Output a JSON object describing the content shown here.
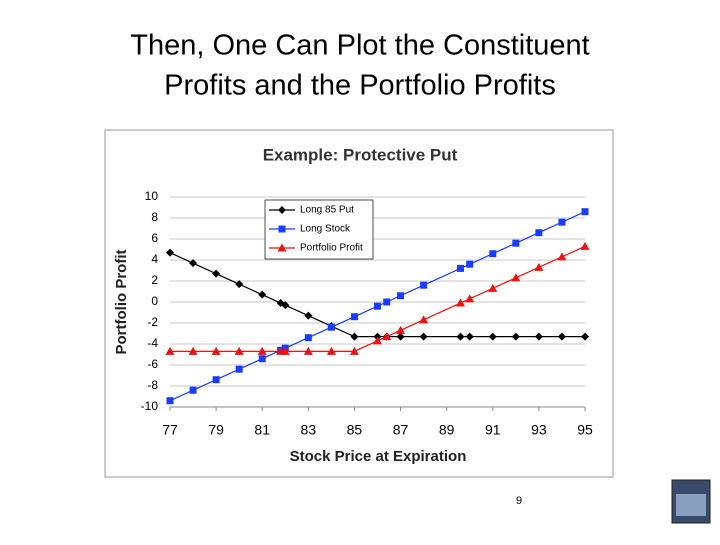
{
  "slide": {
    "title": [
      "Then, One Can Plot the Constituent",
      "Profits and the Portfolio Profits"
    ],
    "page_number": "9"
  },
  "chart_data": {
    "type": "line",
    "title": "Example: Protective Put",
    "x_label": "Stock Price at Expiration",
    "y_label": "Portfolio Profit",
    "x": [
      77,
      78,
      79,
      80,
      81,
      81.8,
      82,
      83,
      84,
      85,
      86,
      86.4,
      87,
      88,
      89.6,
      90,
      91,
      92,
      93,
      94,
      95
    ],
    "series": [
      {
        "name": "Long 85 Put",
        "color": "#000000",
        "marker": "diamond",
        "values": [
          4.7,
          3.7,
          2.7,
          1.7,
          0.7,
          -0.1,
          -0.3,
          -1.3,
          -2.3,
          -3.3,
          -3.3,
          -3.3,
          -3.3,
          -3.3,
          -3.3,
          -3.3,
          -3.3,
          -3.3,
          -3.3,
          -3.3,
          -3.3
        ]
      },
      {
        "name": "Long Stock",
        "color": "#1a3cff",
        "marker": "square",
        "values": [
          -9.4,
          -8.4,
          -7.4,
          -6.4,
          -5.4,
          -4.6,
          -4.4,
          -3.4,
          -2.4,
          -1.4,
          -0.4,
          0,
          0.6,
          1.6,
          3.2,
          3.6,
          4.6,
          5.6,
          6.6,
          7.6,
          8.6
        ]
      },
      {
        "name": "Portfolio Profit",
        "color": "#ee1111",
        "marker": "triangle",
        "values": [
          -4.7,
          -4.7,
          -4.7,
          -4.7,
          -4.7,
          -4.7,
          -4.7,
          -4.7,
          -4.7,
          -4.7,
          -3.7,
          -3.3,
          -2.7,
          -1.7,
          -0.1,
          0.3,
          1.3,
          2.3,
          3.3,
          4.3,
          5.3
        ]
      }
    ],
    "xlim": [
      77,
      95
    ],
    "xticks": [
      77,
      79,
      81,
      83,
      85,
      87,
      89,
      91,
      93,
      95
    ],
    "ylim": [
      -10,
      10
    ],
    "yticks": [
      -10,
      -8,
      -6,
      -4,
      -2,
      0,
      2,
      4,
      6,
      8,
      10
    ],
    "grid": true,
    "legend": "upper-left"
  }
}
